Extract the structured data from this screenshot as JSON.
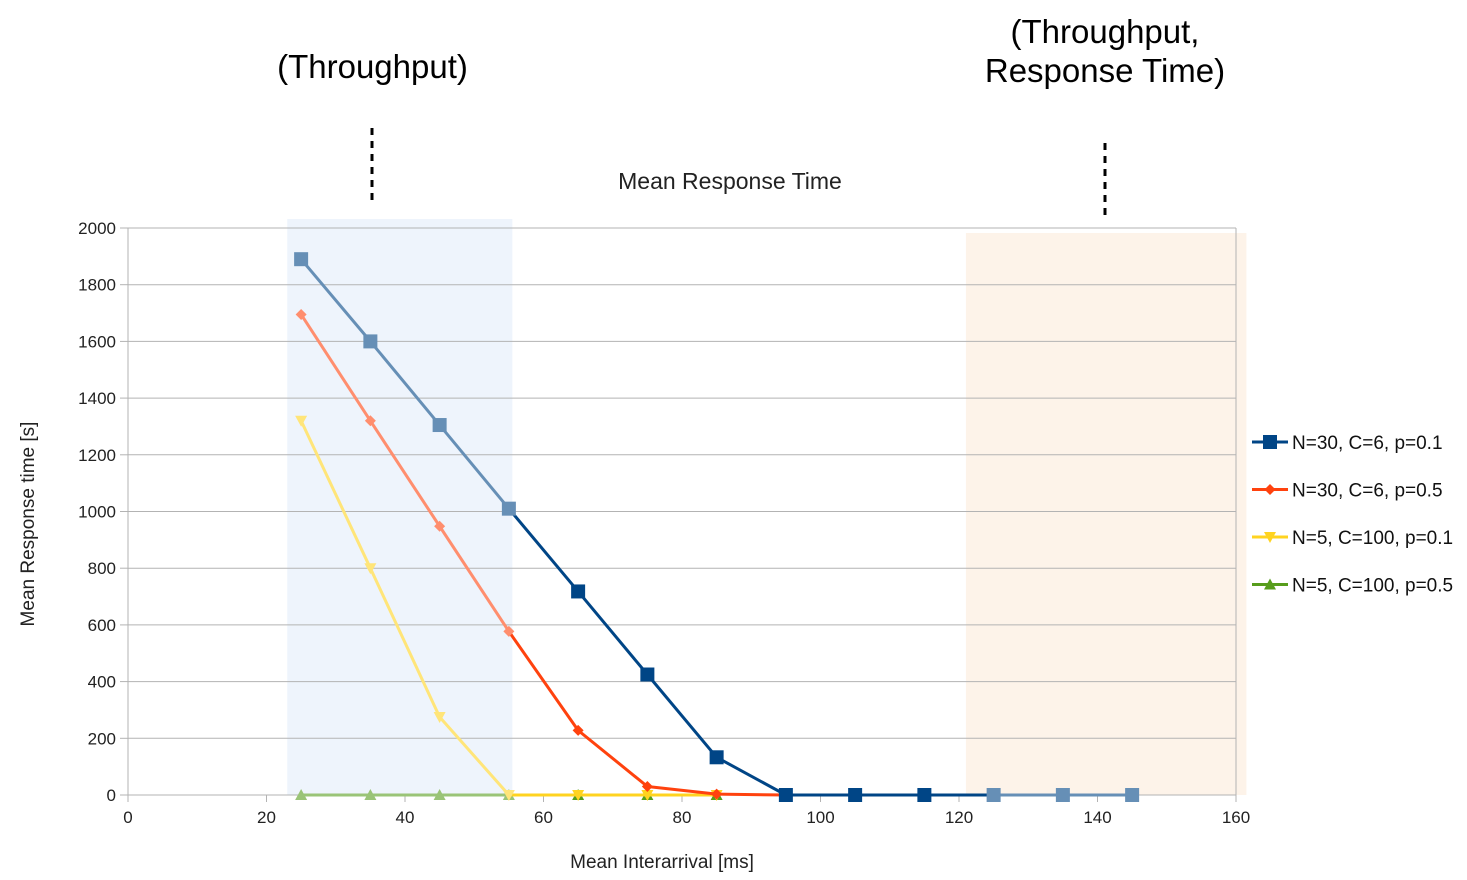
{
  "annotations": {
    "left": [
      "(Throughput)"
    ],
    "right": [
      "(Throughput,",
      "Response Time)"
    ]
  },
  "highlights": [
    {
      "x_from": 23,
      "x_to": 55.5,
      "color": "#eef4fc"
    },
    {
      "x_from": 121,
      "x_to": 161.5,
      "color": "#fdf3e9"
    }
  ],
  "chart_data": {
    "type": "line",
    "title": "Mean Response Time",
    "xlabel": "Mean Interarrival [ms]",
    "ylabel": "Mean Response time [s]",
    "xlim": [
      0,
      160
    ],
    "ylim": [
      0,
      2000
    ],
    "xticks": [
      0,
      20,
      40,
      60,
      80,
      100,
      120,
      140,
      160
    ],
    "yticks": [
      0,
      200,
      400,
      600,
      800,
      1000,
      1200,
      1400,
      1600,
      1800,
      2000
    ],
    "grid": "horizontal",
    "legend_position": "right",
    "x": [
      25,
      35,
      45,
      55,
      65,
      75,
      85,
      95,
      105,
      115,
      125,
      135,
      145
    ],
    "series": [
      {
        "name": "N=30, C=6, p=0.1",
        "color": "#004586",
        "marker": "square",
        "values": [
          1890,
          1600,
          1305,
          1010,
          718,
          425,
          133,
          0,
          0,
          0,
          0,
          0,
          0
        ]
      },
      {
        "name": "N=30, C=6, p=0.5",
        "color": "#ff420e",
        "marker": "diamond",
        "values": [
          1695,
          1320,
          948,
          577,
          228,
          30,
          3,
          0,
          null,
          null,
          null,
          null,
          null
        ]
      },
      {
        "name": "N=5, C=100, p=0.1",
        "color": "#ffd320",
        "marker": "triangle-down",
        "values": [
          1320,
          800,
          275,
          0,
          0,
          0,
          0,
          null,
          null,
          null,
          null,
          null,
          null
        ]
      },
      {
        "name": "N=5, C=100, p=0.5",
        "color": "#579d1c",
        "marker": "triangle-up",
        "values": [
          0,
          0,
          0,
          0,
          0,
          0,
          0,
          null,
          null,
          null,
          null,
          null,
          null
        ]
      }
    ]
  }
}
